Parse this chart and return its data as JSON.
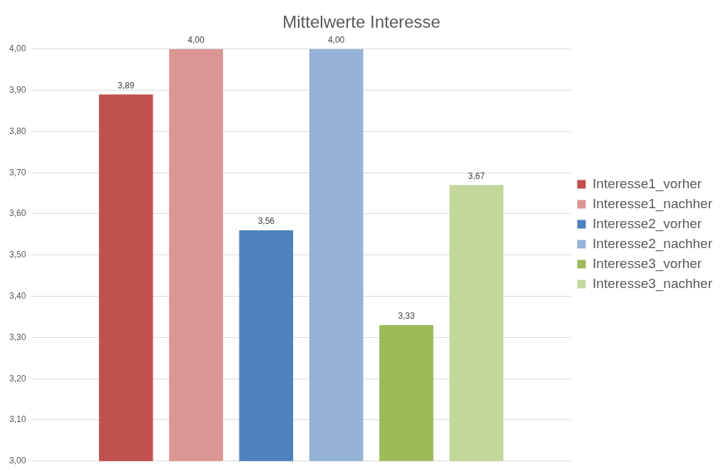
{
  "chart_data": {
    "type": "bar",
    "title": "Mittelwerte Interesse",
    "categories": [
      null
    ],
    "series": [
      {
        "name": "Interesse1_vorher",
        "color": "#c0504d",
        "values": [
          3.89
        ],
        "value_labels": [
          "3,89"
        ]
      },
      {
        "name": "Interesse1_nachher",
        "color": "#da9694",
        "values": [
          4.0
        ],
        "value_labels": [
          "4,00"
        ]
      },
      {
        "name": "Interesse2_vorher",
        "color": "#4f81bd",
        "values": [
          3.56
        ],
        "value_labels": [
          "3,56"
        ]
      },
      {
        "name": "Interesse2_nachher",
        "color": "#95b3d7",
        "values": [
          4.0
        ],
        "value_labels": [
          "4,00"
        ]
      },
      {
        "name": "Interesse3_vorher",
        "color": "#9bbb59",
        "values": [
          3.33
        ],
        "value_labels": [
          "3,33"
        ]
      },
      {
        "name": "Interesse3_nachher",
        "color": "#c4d79b",
        "values": [
          3.67
        ],
        "value_labels": [
          "3,67"
        ]
      }
    ],
    "ylim": [
      3,
      4
    ],
    "yticks": [
      {
        "value": 3,
        "label": "3,00"
      },
      {
        "value": 3.1,
        "label": "3,10"
      },
      {
        "value": 3.2,
        "label": "3,20"
      },
      {
        "value": 3.3,
        "label": "3,30"
      },
      {
        "value": 3.4,
        "label": "3,40"
      },
      {
        "value": 3.5,
        "label": "3,50"
      },
      {
        "value": 3.6,
        "label": "3,60"
      },
      {
        "value": 3.7,
        "label": "3,70"
      },
      {
        "value": 3.8,
        "label": "3,80"
      },
      {
        "value": 3.9,
        "label": "3,90"
      },
      {
        "value": 4,
        "label": "4,00"
      }
    ],
    "grid": "y",
    "legend": "right",
    "tick_labels": "y"
  }
}
